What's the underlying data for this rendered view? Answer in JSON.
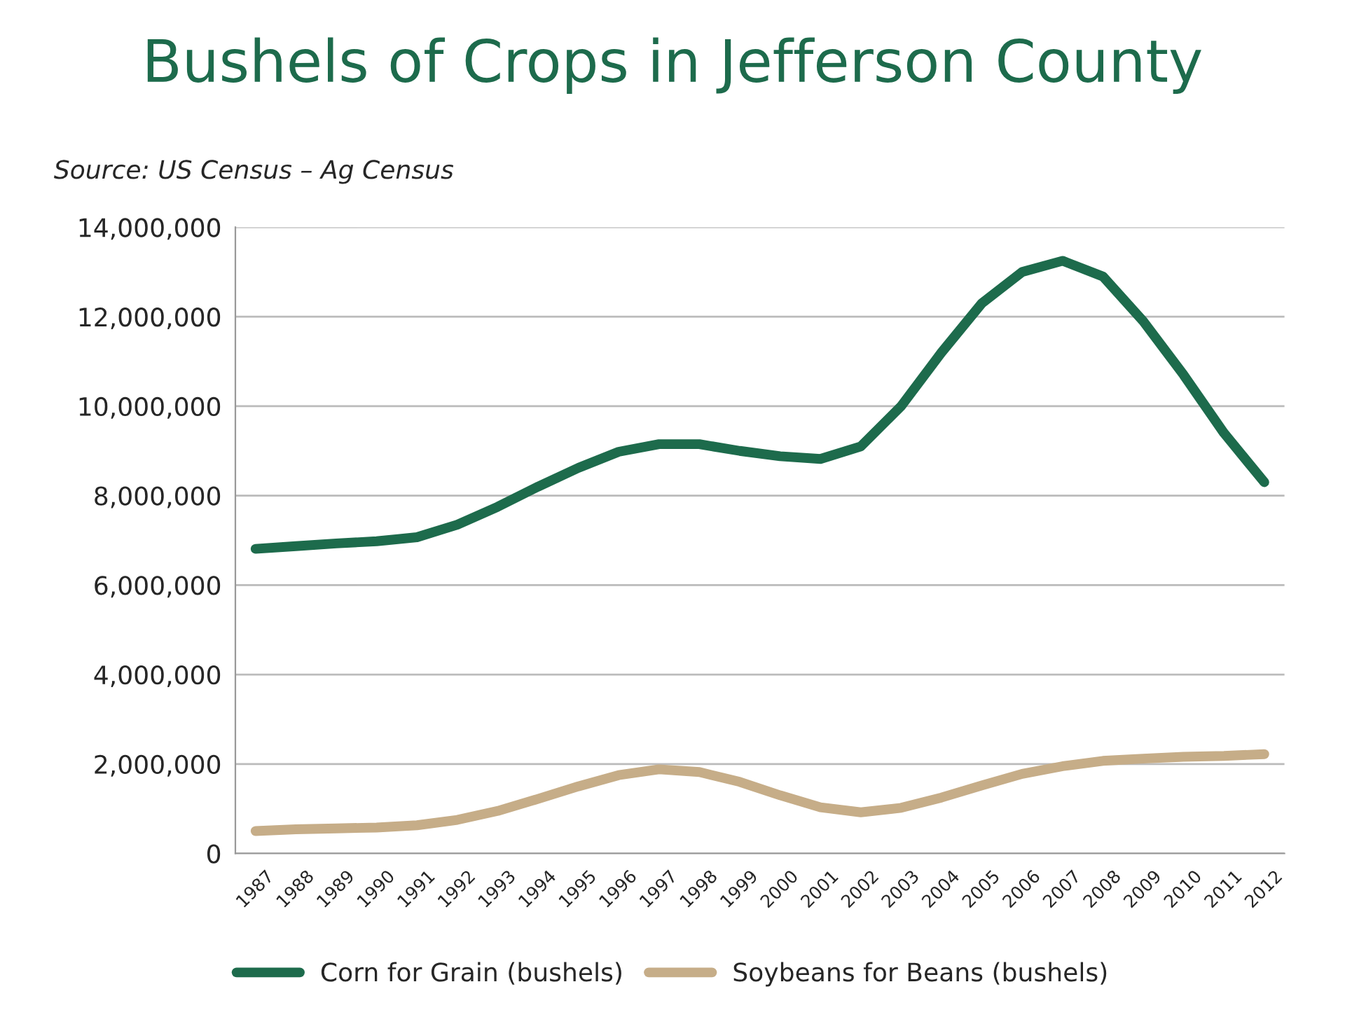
{
  "chart_data": {
    "type": "line",
    "title": "Bushels of Crops in Jefferson County",
    "annotations": [
      "Source: US Census – Ag Census"
    ],
    "categories": [
      "1987",
      "1988",
      "1989",
      "1990",
      "1991",
      "1992",
      "1993",
      "1994",
      "1995",
      "1996",
      "1997",
      "1998",
      "1999",
      "2000",
      "2001",
      "2002",
      "2003",
      "2004",
      "2005",
      "2006",
      "2007",
      "2008",
      "2009",
      "2010",
      "2011",
      "2012"
    ],
    "series": [
      {
        "name": "Corn for Grain (bushels)",
        "color": "#1d6b4c",
        "values": [
          6810000,
          6870000,
          6930000,
          6980000,
          7070000,
          7350000,
          7750000,
          8200000,
          8620000,
          8980000,
          9150000,
          9150000,
          9000000,
          8880000,
          8820000,
          9100000,
          10000000,
          11200000,
          12300000,
          13000000,
          13250000,
          12900000,
          11900000,
          10700000,
          9400000,
          8300000
        ]
      },
      {
        "name": "Soybeans for Beans (bushels)",
        "color": "#c6ad88",
        "values": [
          500000,
          540000,
          560000,
          580000,
          630000,
          750000,
          950000,
          1220000,
          1500000,
          1750000,
          1880000,
          1820000,
          1600000,
          1300000,
          1030000,
          920000,
          1020000,
          1250000,
          1520000,
          1780000,
          1950000,
          2070000,
          2120000,
          2160000,
          2180000,
          2220000
        ]
      }
    ],
    "ylim": [
      0,
      14000000
    ],
    "yticks": [
      {
        "value": 0,
        "label": "0"
      },
      {
        "value": 2000000,
        "label": "2,000,000"
      },
      {
        "value": 4000000,
        "label": "4,000,000"
      },
      {
        "value": 6000000,
        "label": "6,000,000"
      },
      {
        "value": 8000000,
        "label": "8,000,000"
      },
      {
        "value": 10000000,
        "label": "10,000,000"
      },
      {
        "value": 12000000,
        "label": "12,000,000"
      },
      {
        "value": 14000000,
        "label": "14,000,000"
      }
    ],
    "grid": "y",
    "legend": "bottom",
    "line_style": "solid",
    "marker": "none"
  }
}
